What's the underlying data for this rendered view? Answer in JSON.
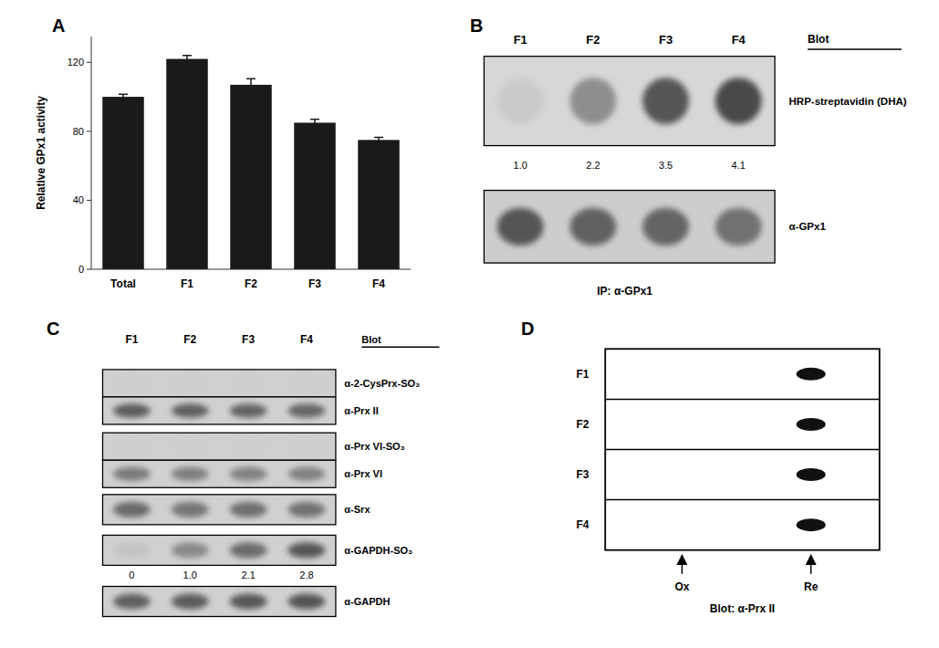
{
  "chart_data": [
    {
      "type": "bar",
      "title": "A",
      "categories": [
        "Total",
        "F1",
        "F2",
        "F3",
        "F4"
      ],
      "values": [
        100,
        122,
        107,
        85,
        75
      ],
      "errors": [
        1.5,
        2.0,
        3.5,
        2.0,
        1.5
      ],
      "ylabel": "Relative GPx1 activity",
      "ylim": [
        0,
        135
      ],
      "yticks": [
        0,
        40,
        80,
        120
      ],
      "color": "#1a1a1a"
    },
    {
      "type": "blot",
      "title": "B",
      "header": "Blot",
      "categories": [
        "F1",
        "F2",
        "F3",
        "F4"
      ],
      "series": [
        {
          "name": "HRP-streptavidin (DHA)",
          "values": [
            0.08,
            0.45,
            0.8,
            0.88
          ],
          "band_values": [
            {
              "value": 1.0,
              "label": "1.0"
            },
            2.2,
            3.5,
            4.1
          ]
        },
        {
          "name": "α-GPx1",
          "values": [
            0.78,
            0.7,
            0.68,
            0.6
          ]
        }
      ],
      "xlabel": "IP: α-GPx1"
    },
    {
      "type": "blot",
      "title": "C",
      "header": "Blot",
      "categories": [
        "F1",
        "F2",
        "F3",
        "F4"
      ],
      "series": [
        {
          "name": "α-2-CysPrx-SO₃",
          "values": [
            0.02,
            0.02,
            0.02,
            0.02
          ]
        },
        {
          "name": "α-Prx II",
          "values": [
            0.75,
            0.72,
            0.7,
            0.68
          ]
        },
        {
          "name": "α-Prx VI-SO₃",
          "values": [
            0.02,
            0.02,
            0.02,
            0.02
          ]
        },
        {
          "name": "α-Prx VI",
          "values": [
            0.55,
            0.52,
            0.5,
            0.5
          ]
        },
        {
          "name": "α-Srx",
          "values": [
            0.65,
            0.58,
            0.62,
            0.6
          ]
        },
        {
          "name": "α-GAPDH-SO₃",
          "values": [
            0.08,
            0.45,
            0.65,
            0.78
          ],
          "band_values": [
            0,
            {
              "value": 1.0,
              "label": "1.0"
            },
            2.1,
            2.8
          ]
        },
        {
          "name": "α-GAPDH",
          "values": [
            0.72,
            0.75,
            0.78,
            0.8
          ]
        }
      ]
    },
    {
      "type": "dot_blot",
      "title": "D",
      "categories": [
        "F1",
        "F2",
        "F3",
        "F4"
      ],
      "col_labels": [
        "Ox",
        "Re"
      ],
      "xlabel": "Blot: α-Prx II",
      "color": "#111111"
    }
  ]
}
